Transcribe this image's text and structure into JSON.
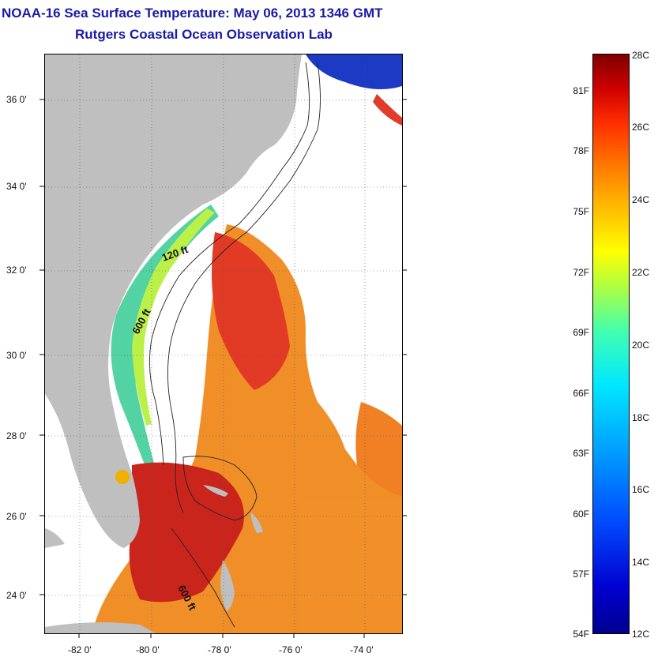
{
  "title_line1": "NOAA-16 Sea Surface Temperature:  May 06, 2013 1346 GMT",
  "title_line2": "Rutgers Coastal Ocean Observation Lab",
  "lat_labels": [
    "36 0'",
    "34 0'",
    "32 0'",
    "30 0'",
    "28 0'",
    "26 0'",
    "24 0'"
  ],
  "lon_labels": [
    "-82 0'",
    "-80 0'",
    "-78 0'",
    "-76 0'",
    "-74 0'"
  ],
  "contour_labels": [
    "120 ft",
    "600 ft",
    "600 ft"
  ],
  "colorbar": {
    "fahrenheit": [
      "81F",
      "78F",
      "75F",
      "72F",
      "69F",
      "66F",
      "63F",
      "60F",
      "57F",
      "54F"
    ],
    "celsius": [
      "28C",
      "26C",
      "24C",
      "22C",
      "20C",
      "18C",
      "16C",
      "14C",
      "12C"
    ],
    "range_c": [
      12,
      28
    ]
  },
  "colors": {
    "land": "#bfbfbf",
    "title": "#1a1aa6",
    "warm": "#d81e00",
    "cool": "#00c8e0"
  }
}
